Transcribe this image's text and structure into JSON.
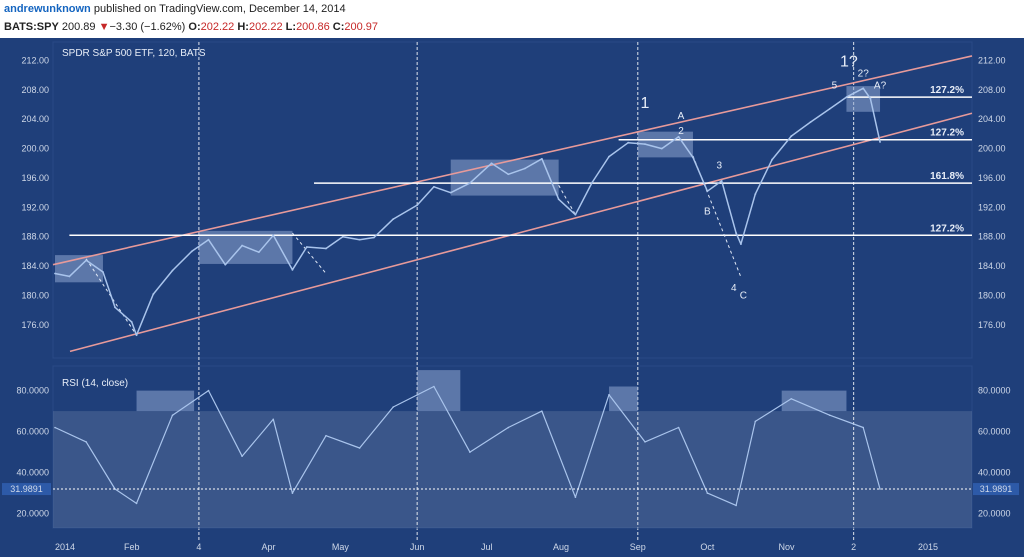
{
  "header": {
    "author": "andrewunknown",
    "published": "published on TradingView.com, December 14, 2014",
    "symbol": "BATS:SPY",
    "last": "200.89",
    "change_arrow": "▼",
    "change": "−3.30 (−1.62%)",
    "o_label": "O:",
    "o": "202.22",
    "h_label": "H:",
    "h": "202.22",
    "l_label": "L:",
    "l": "200.86",
    "c_label": "C:",
    "c": "200.97"
  },
  "colors": {
    "background": "#1f3f7a",
    "panel_border": "#2a4a86",
    "price_line": "#a9c4ec",
    "channel": "#e79a9a",
    "level_line": "#ffffff",
    "box_fill": "#8ea6cf",
    "overlay_white": "#ffffff"
  },
  "chart_data": [
    {
      "type": "line",
      "title": "SPDR S&P 500 ETF, 120, BATS",
      "xlabel": "",
      "ylabel": "",
      "x_ticks": [
        "2014",
        "Feb",
        "4",
        "Apr",
        "May",
        "Jun",
        "Jul",
        "Aug",
        "Sep",
        "Oct",
        "Nov",
        "2",
        "2015"
      ],
      "y_ticks": [
        176,
        180,
        184,
        188,
        192,
        196,
        200,
        204,
        208,
        212
      ],
      "y_tick_labels": [
        "176.00",
        "180.00",
        "184.00",
        "188.00",
        "192.00",
        "196.00",
        "200.00",
        "204.00",
        "208.00",
        "212.00"
      ],
      "ylim": [
        171.5,
        214.5
      ],
      "series": [
        {
          "name": "SPY",
          "x": [
            "2014-01-02",
            "2014-01-08",
            "2014-01-15",
            "2014-01-22",
            "2014-01-27",
            "2014-02-03",
            "2014-02-05",
            "2014-02-12",
            "2014-02-20",
            "2014-02-28",
            "2014-03-07",
            "2014-03-14",
            "2014-03-21",
            "2014-03-28",
            "2014-04-03",
            "2014-04-11",
            "2014-04-17",
            "2014-04-25",
            "2014-05-02",
            "2014-05-09",
            "2014-05-15",
            "2014-05-23",
            "2014-06-02",
            "2014-06-09",
            "2014-06-16",
            "2014-06-24",
            "2014-07-03",
            "2014-07-10",
            "2014-07-17",
            "2014-07-24",
            "2014-07-31",
            "2014-08-07",
            "2014-08-14",
            "2014-08-21",
            "2014-08-29",
            "2014-09-05",
            "2014-09-12",
            "2014-09-19",
            "2014-09-25",
            "2014-10-01",
            "2014-10-07",
            "2014-10-13",
            "2014-10-15",
            "2014-10-21",
            "2014-10-28",
            "2014-11-05",
            "2014-11-13",
            "2014-11-21",
            "2014-11-28",
            "2014-12-05",
            "2014-12-08",
            "2014-12-12"
          ],
          "values": [
            183.0,
            182.6,
            184.8,
            183.2,
            178.4,
            176.4,
            174.6,
            180.2,
            183.4,
            186.0,
            187.6,
            184.2,
            186.8,
            185.9,
            188.2,
            183.5,
            186.6,
            186.4,
            188.0,
            187.6,
            187.9,
            190.4,
            192.3,
            194.8,
            194.0,
            195.3,
            198.0,
            196.5,
            197.3,
            198.6,
            193.1,
            191.0,
            195.4,
            198.9,
            200.8,
            200.6,
            200.0,
            201.6,
            198.8,
            194.2,
            195.6,
            188.5,
            187.0,
            193.8,
            198.5,
            201.7,
            203.6,
            205.4,
            207.0,
            208.2,
            206.8,
            200.9
          ]
        }
      ],
      "levels": [
        {
          "label": "127.2%",
          "value": 207.0
        },
        {
          "label": "127.2%",
          "value": 201.2
        },
        {
          "label": "161.8%",
          "value": 195.3
        },
        {
          "label": "127.2%",
          "value": 188.2
        }
      ],
      "annotations": [
        "1",
        "A",
        "2",
        "3",
        "B",
        "4",
        "C",
        "5",
        "1?",
        "2?",
        "A?"
      ]
    },
    {
      "type": "line",
      "title": "RSI (14, close)",
      "y_ticks": [
        20,
        40,
        60,
        80
      ],
      "y_tick_labels": [
        "20.0000",
        "40.0000",
        "60.0000",
        "80.0000"
      ],
      "ylim": [
        13,
        92
      ],
      "overbought": 70,
      "current_value_label": "31.9891",
      "current_value": 31.99,
      "series": [
        {
          "name": "RSI",
          "x": [
            "2014-01-02",
            "2014-01-15",
            "2014-01-27",
            "2014-02-05",
            "2014-02-20",
            "2014-03-07",
            "2014-03-21",
            "2014-04-03",
            "2014-04-11",
            "2014-04-25",
            "2014-05-09",
            "2014-05-23",
            "2014-06-09",
            "2014-06-24",
            "2014-07-10",
            "2014-07-24",
            "2014-08-07",
            "2014-08-21",
            "2014-09-05",
            "2014-09-19",
            "2014-10-01",
            "2014-10-13",
            "2014-10-21",
            "2014-11-05",
            "2014-11-21",
            "2014-12-05",
            "2014-12-12"
          ],
          "values": [
            62,
            55,
            32,
            25,
            68,
            80,
            48,
            66,
            30,
            58,
            52,
            72,
            82,
            50,
            62,
            70,
            28,
            78,
            55,
            62,
            30,
            24,
            65,
            76,
            68,
            62,
            32
          ]
        }
      ]
    }
  ]
}
